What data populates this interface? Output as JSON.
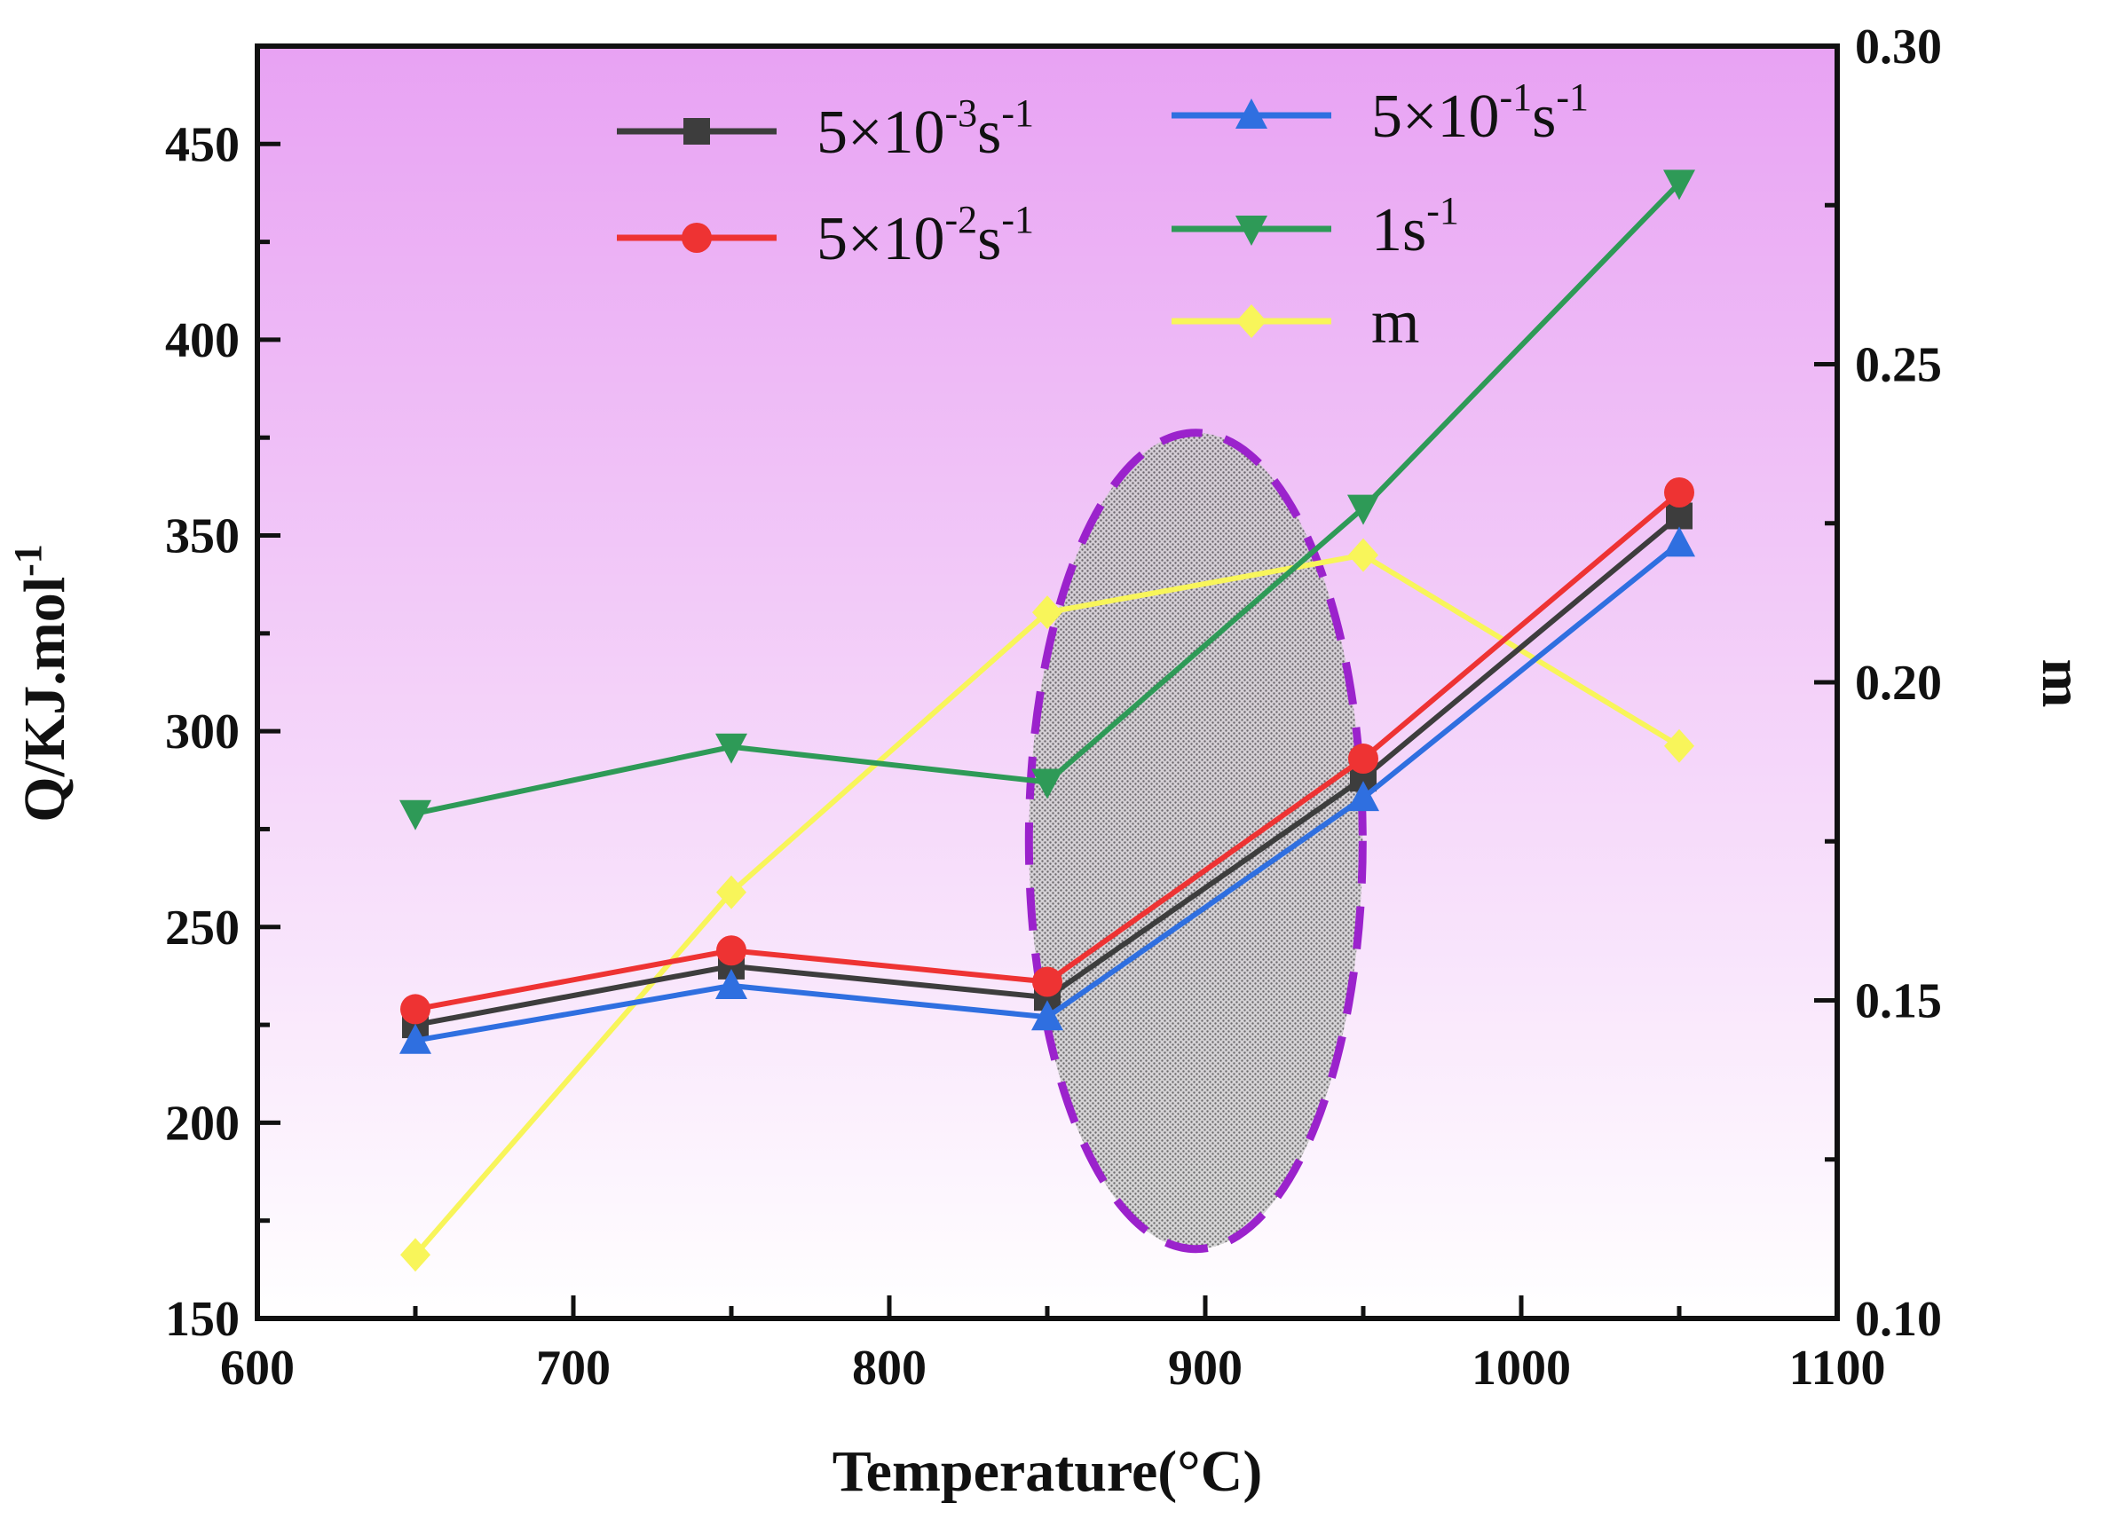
{
  "chart_data": {
    "type": "line",
    "title": "",
    "xlabel": "Temperature(°C)",
    "ylabel_left": "Q/KJ.mol",
    "ylabel_left_sup": "-1",
    "ylabel_right": "m",
    "xlim": [
      600,
      1100
    ],
    "ylim_left": [
      150,
      475
    ],
    "ylim_right": [
      0.1,
      0.3
    ],
    "x_ticks": [
      "600",
      "700",
      "800",
      "900",
      "1000",
      "1100"
    ],
    "y_ticks_left": [
      "150",
      "200",
      "250",
      "300",
      "350",
      "400",
      "450"
    ],
    "y_ticks_right": [
      "0.10",
      "0.15",
      "0.20",
      "0.25",
      "0.30"
    ],
    "x": [
      650,
      750,
      850,
      950,
      1050
    ],
    "series": [
      {
        "name": "5×10",
        "sup": "-3",
        "unit": "s",
        "unit_sup": "-1",
        "axis": "left",
        "color": "#3d3d3d",
        "marker": "square",
        "values": [
          225,
          240,
          232,
          288,
          355
        ]
      },
      {
        "name": "5×10",
        "sup": "-2",
        "unit": "s",
        "unit_sup": "-1",
        "axis": "left",
        "color": "#ee3333",
        "marker": "circle",
        "values": [
          229,
          244,
          236,
          293,
          361
        ]
      },
      {
        "name": "5×10",
        "sup": "-1",
        "unit": "s",
        "unit_sup": "-1",
        "axis": "left",
        "color": "#2f6fe0",
        "marker": "triangle-up",
        "values": [
          221,
          235,
          227,
          283,
          348
        ]
      },
      {
        "name": "1",
        "sup": "",
        "unit": "s",
        "unit_sup": "-1",
        "axis": "left",
        "color": "#2e9a57",
        "marker": "triangle-down",
        "values": [
          279,
          296,
          287,
          357,
          440
        ]
      },
      {
        "name": "m",
        "sup": "",
        "unit": "",
        "unit_sup": "",
        "axis": "right",
        "color": "#f8f55a",
        "marker": "diamond",
        "values": [
          0.11,
          0.167,
          0.211,
          0.22,
          0.19
        ]
      }
    ],
    "annotation": {
      "type": "dashed-ellipse",
      "center_x": 897,
      "center_y": 272,
      "color": "#9b22cc",
      "fill": "stippled gray"
    },
    "background_gradient": [
      "#e8a2f3",
      "#ffffff"
    ]
  }
}
